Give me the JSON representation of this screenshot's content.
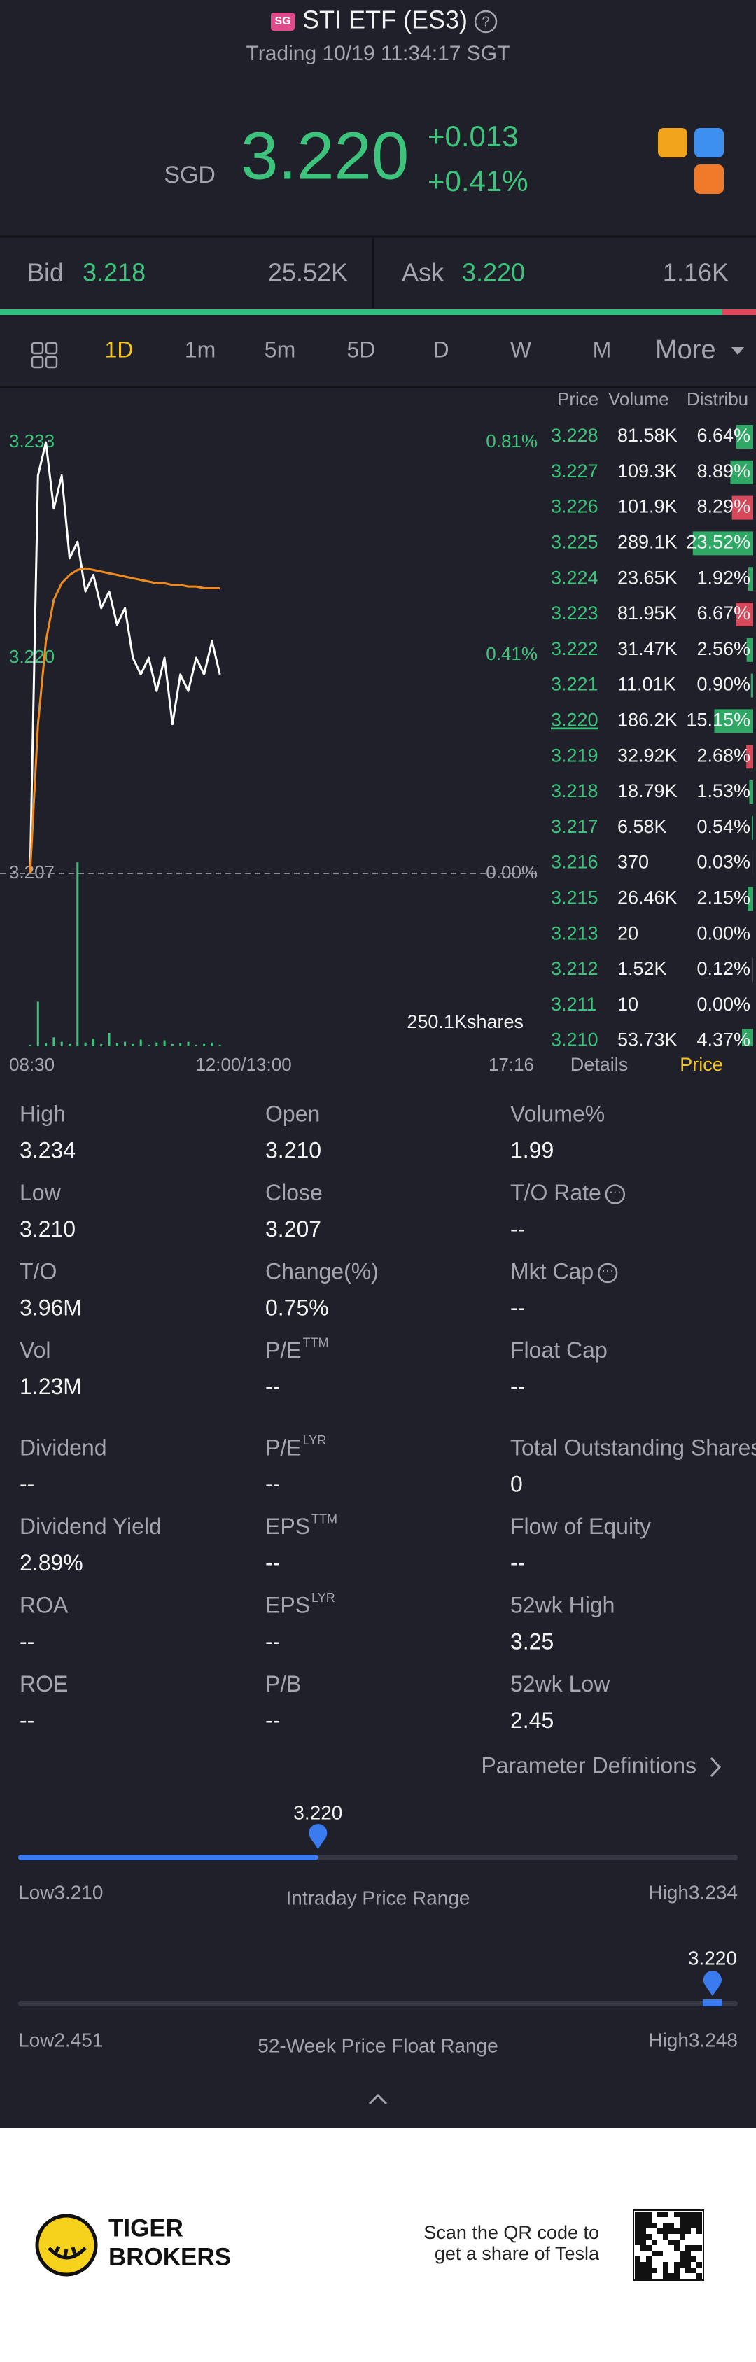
{
  "header": {
    "badge": "SG",
    "title": "STI ETF (ES3)",
    "subtitle": "Trading 10/19 11:34:17 SGT"
  },
  "quote": {
    "currency": "SGD",
    "price": "3.220",
    "change": "+0.013",
    "change_pct": "+0.41%"
  },
  "bid_ask": {
    "bid_label": "Bid",
    "bid": "3.218",
    "bid_size": "25.52K",
    "ask_label": "Ask",
    "ask": "3.220",
    "ask_size": "1.16K"
  },
  "tabs": [
    "1D",
    "1m",
    "5m",
    "5D",
    "D",
    "W",
    "M",
    "More"
  ],
  "chart_data": {
    "type": "line",
    "series": [
      {
        "color": "#ffffff",
        "values": [
          3.207,
          3.231,
          3.233,
          3.229,
          3.231,
          3.226,
          3.227,
          3.224,
          3.225,
          3.223,
          3.224,
          3.222,
          3.223,
          3.22,
          3.219,
          3.22,
          3.218,
          3.22,
          3.216,
          3.219,
          3.218,
          3.22,
          3.219,
          3.221,
          3.219
        ]
      },
      {
        "color": "#f08c1e",
        "values": [
          3.207,
          3.216,
          3.221,
          3.2235,
          3.2245,
          3.225,
          3.2253,
          3.2254,
          3.2253,
          3.2252,
          3.2251,
          3.225,
          3.2249,
          3.2248,
          3.2247,
          3.2246,
          3.2245,
          3.2245,
          3.2244,
          3.2244,
          3.2243,
          3.2243,
          3.2242,
          3.2242,
          3.2242
        ]
      }
    ],
    "ylim": [
      3.207,
      3.233
    ],
    "yticks": [
      {
        "value": 3.207,
        "label": "3.207"
      },
      {
        "value": 3.22,
        "label": "3.220"
      },
      {
        "value": 3.233,
        "label": "3.233"
      }
    ],
    "y2lim": [
      0,
      0.81
    ],
    "y2ticks": [
      {
        "value": 0,
        "label": "0.00%"
      },
      {
        "value": 0.41,
        "label": "0.41%"
      },
      {
        "value": 0.81,
        "label": "0.81%"
      }
    ],
    "x_labels": [
      "08:30",
      "12:00/13:00",
      "17:16"
    ],
    "volume": {
      "type": "bar",
      "color": "#3cc47c",
      "values": [
        2,
        60,
        4,
        12,
        6,
        3,
        248,
        5,
        10,
        3,
        18,
        4,
        6,
        3,
        9,
        2,
        5,
        8,
        3,
        4,
        6,
        2,
        3,
        5,
        2
      ],
      "ylim": [
        0,
        250.1
      ],
      "label": "250.1Kshares"
    }
  },
  "distribution": {
    "type": "bar",
    "headers": [
      "Price",
      "Volume",
      "Distribu"
    ],
    "prices": [
      "3.228",
      "3.227",
      "3.226",
      "3.225",
      "3.224",
      "3.223",
      "3.222",
      "3.221",
      "3.220",
      "3.219",
      "3.218",
      "3.217",
      "3.216",
      "3.215",
      "3.213",
      "3.212",
      "3.211",
      "3.210"
    ],
    "volumes": [
      "81.58K",
      "109.3K",
      "101.9K",
      "289.1K",
      "23.65K",
      "81.95K",
      "31.47K",
      "11.01K",
      "186.2K",
      "32.92K",
      "18.79K",
      "6.58K",
      "370",
      "26.46K",
      "20",
      "1.52K",
      "10",
      "53.73K"
    ],
    "values": [
      6.64,
      8.89,
      8.29,
      23.52,
      1.92,
      6.67,
      2.56,
      0.9,
      15.15,
      2.68,
      1.53,
      0.54,
      0.03,
      2.15,
      0.0,
      0.12,
      0.0,
      4.37
    ],
    "value_labels": [
      "6.64%",
      "8.89%",
      "8.29%",
      "23.52%",
      "1.92%",
      "6.67%",
      "2.56%",
      "0.90%",
      "15.15%",
      "2.68%",
      "1.53%",
      "0.54%",
      "0.03%",
      "2.15%",
      "0.00%",
      "0.12%",
      "0.00%",
      "4.37%"
    ],
    "colors": [
      "#2fa866",
      "#2fa866",
      "#d8485b",
      "#2fa866",
      "#2fa866",
      "#d8485b",
      "#2fa866",
      "#2fa866",
      "#2fa866",
      "#d8485b",
      "#2fa866",
      "#2fa866",
      "#2fa866",
      "#2fa866",
      "#2fa866",
      "#2fa866",
      "#2fa866",
      "#2fa866"
    ],
    "xlim": [
      0,
      24
    ]
  },
  "panel_tabs": [
    "Details",
    "Price"
  ],
  "stats": [
    [
      {
        "label": "High",
        "value": "3.234"
      },
      {
        "label": "Open",
        "value": "3.210"
      },
      {
        "label": "Volume%",
        "value": "1.99"
      }
    ],
    [
      {
        "label": "Low",
        "value": "3.210"
      },
      {
        "label": "Close",
        "value": "3.207"
      },
      {
        "label": "T/O Rate",
        "value": "--",
        "info": true
      }
    ],
    [
      {
        "label": "T/O",
        "value": "3.96M"
      },
      {
        "label": "Change(%)",
        "value": "0.75%"
      },
      {
        "label": "Mkt Cap",
        "value": "--",
        "info": true
      }
    ],
    [
      {
        "label": "Vol",
        "value": "1.23M"
      },
      {
        "label": "P/E",
        "sup": "TTM",
        "value": "--"
      },
      {
        "label": "Float Cap",
        "value": "--"
      }
    ],
    [
      {
        "label": "Dividend",
        "value": "--"
      },
      {
        "label": "P/E",
        "sup": "LYR",
        "value": "--"
      },
      {
        "label": "Total Outstanding Shares",
        "value": "0"
      }
    ],
    [
      {
        "label": "Dividend Yield",
        "value": "2.89%"
      },
      {
        "label": "EPS",
        "sup": "TTM",
        "value": "--"
      },
      {
        "label": "Flow of Equity",
        "value": "--"
      }
    ],
    [
      {
        "label": "ROA",
        "value": "--"
      },
      {
        "label": "EPS",
        "sup": "LYR",
        "value": "--"
      },
      {
        "label": "52wk High",
        "value": "3.25"
      }
    ],
    [
      {
        "label": "ROE",
        "value": "--"
      },
      {
        "label": "P/B",
        "value": "--"
      },
      {
        "label": "52wk Low",
        "value": "2.45"
      }
    ]
  ],
  "parameter_definitions": "Parameter Definitions",
  "intraday_range": {
    "title": "Intraday Price Range",
    "low": {
      "value": 3.21,
      "label": "Low3.210"
    },
    "high": {
      "value": 3.234,
      "label": "High3.234"
    },
    "current": {
      "value": 3.22,
      "label": "3.220"
    }
  },
  "week52_range": {
    "title": "52-Week Price Float Range",
    "low": {
      "value": 2.451,
      "label": "Low2.451"
    },
    "high": {
      "value": 3.248,
      "label": "High3.248"
    },
    "current": {
      "value": 3.22,
      "label": "3.220"
    }
  },
  "footer": {
    "brand": [
      "TIGER",
      "BROKERS"
    ],
    "promo": [
      "Scan the QR code to",
      "get a share of Tesla"
    ]
  }
}
